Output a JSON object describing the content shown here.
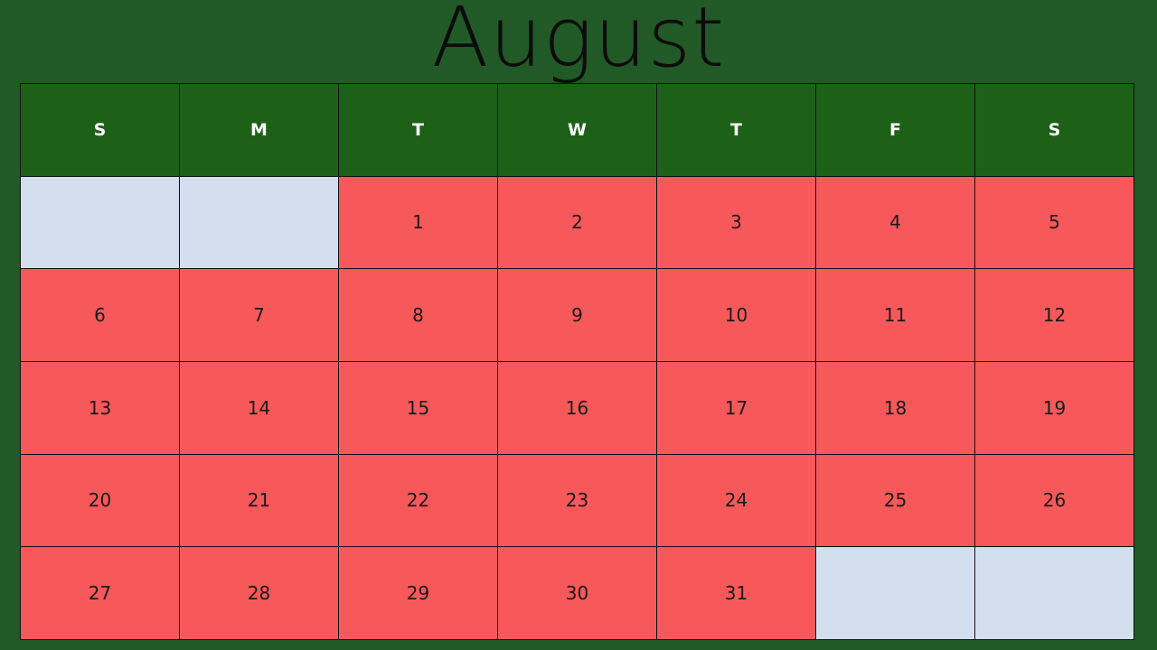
{
  "title": "August",
  "weekdays": [
    "S",
    "M",
    "T",
    "W",
    "T",
    "F",
    "S"
  ],
  "weeks": [
    [
      "",
      "",
      "1",
      "2",
      "3",
      "4",
      "5"
    ],
    [
      "6",
      "7",
      "8",
      "9",
      "10",
      "11",
      "12"
    ],
    [
      "13",
      "14",
      "15",
      "16",
      "17",
      "18",
      "19"
    ],
    [
      "20",
      "21",
      "22",
      "23",
      "24",
      "25",
      "26"
    ],
    [
      "27",
      "28",
      "29",
      "30",
      "31",
      "",
      ""
    ]
  ],
  "colors": {
    "background": "#215a26",
    "header": "#1d6118",
    "day_cell": "#f7585a",
    "empty_cell": "#d3dfef"
  }
}
